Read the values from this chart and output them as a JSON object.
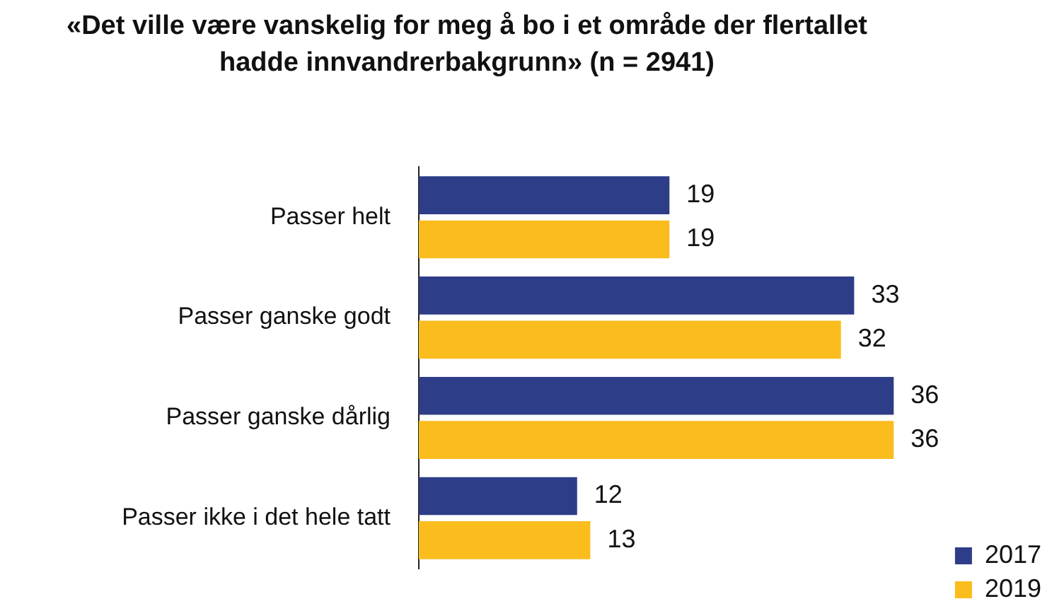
{
  "chart_data": {
    "type": "bar",
    "orientation": "horizontal",
    "title": "«Det ville være vanskelig for meg å bo i et område der flertallet hadde innvandrerbakgrunn» (n = 2941)",
    "categories": [
      "Passer helt",
      "Passer ganske godt",
      "Passer ganske dårlig",
      "Passer ikke i det hele tatt"
    ],
    "series": [
      {
        "name": "2017",
        "color": "#2e3d87",
        "values": [
          19,
          33,
          36,
          12
        ]
      },
      {
        "name": "2019",
        "color": "#fbbd1e",
        "values": [
          19,
          32,
          36,
          13
        ]
      }
    ],
    "data_labels": true,
    "legend": "bottom right",
    "tick_labels": "y"
  }
}
